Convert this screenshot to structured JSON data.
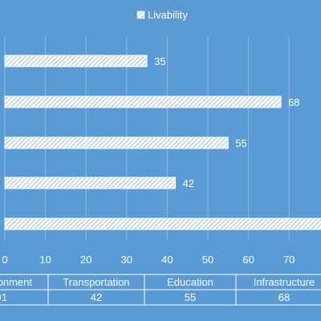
{
  "chart_data": {
    "type": "bar",
    "orientation": "horizontal",
    "title": "",
    "xlabel": "",
    "ylabel": "",
    "xlim": [
      0,
      80
    ],
    "x_ticks": [
      0,
      10,
      20,
      30,
      40,
      50,
      60,
      70
    ],
    "grid": true,
    "legend": {
      "position": "top",
      "entries": [
        "Livability"
      ]
    },
    "series": [
      {
        "name": "Livability",
        "pattern": "diagonal-hatch",
        "bars_top_to_bottom": [
          {
            "label": "35",
            "value": 35
          },
          {
            "label": "68",
            "value": 68
          },
          {
            "label": "55",
            "value": 55
          },
          {
            "label": "42",
            "value": 42
          },
          {
            "label": "",
            "value": 91
          }
        ]
      }
    ],
    "data_table": {
      "headers": [
        "Environment",
        "Transportation",
        "Education",
        "Infrastructure"
      ],
      "visible_headers": [
        "onment",
        "Transportation",
        "Education",
        "Infrastructure"
      ],
      "values": [
        91,
        42,
        55,
        68
      ],
      "visible_values": [
        "91",
        "42",
        "55",
        "68"
      ]
    }
  },
  "colors": {
    "background": "#5b9bd5",
    "foreground": "#ffffff",
    "gridline": "#8db8e3"
  }
}
